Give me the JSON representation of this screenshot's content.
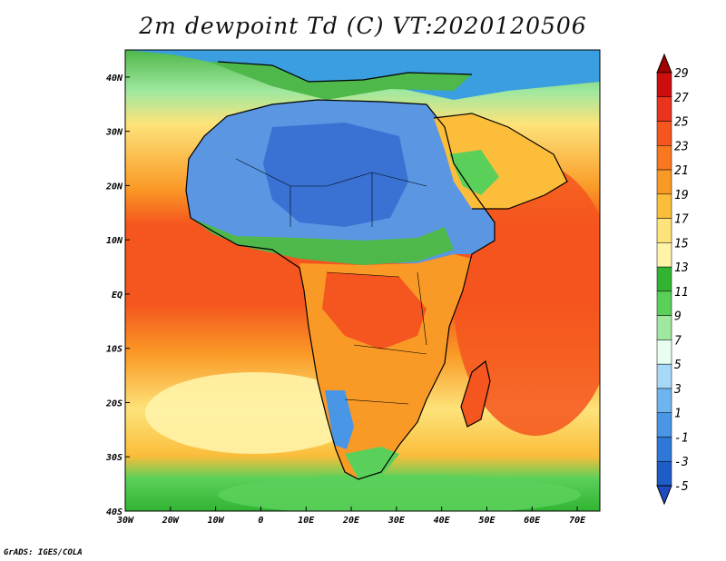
{
  "title": "2m dewpoint Td (C) VT:2020120506",
  "footer": "GrADS: IGES/COLA",
  "map": {
    "lon_range": [
      -30,
      75
    ],
    "lat_range": [
      -40,
      45
    ],
    "lon_ticks": [
      "30W",
      "20W",
      "10W",
      "0",
      "10E",
      "20E",
      "30E",
      "40E",
      "50E",
      "60E",
      "70E"
    ],
    "lat_ticks": [
      "40N",
      "30N",
      "20N",
      "10N",
      "EQ",
      "10S",
      "20S",
      "30S",
      "40S"
    ],
    "field": "2m dewpoint temperature"
  },
  "colorbar": {
    "levels": [
      "29",
      "27",
      "25",
      "23",
      "21",
      "19",
      "17",
      "15",
      "13",
      "11",
      "9",
      "7",
      "5",
      "3",
      "1",
      "-1",
      "-3",
      "-5"
    ],
    "colors": [
      "#a00000",
      "#cc0e0e",
      "#e9341e",
      "#f5551e",
      "#f87820",
      "#fa9a26",
      "#fbbd3a",
      "#fde37a",
      "#fff3a8",
      "#32b432",
      "#5ad05a",
      "#a0e8a0",
      "#e8fff0",
      "#a8d8f8",
      "#6eb4ee",
      "#4a96e6",
      "#3078d8",
      "#1e5cc8",
      "#1e4cc0"
    ]
  },
  "colors": {
    "land_dry": "#5a96e2",
    "coast": "#000000",
    "background": "#ffffff"
  }
}
